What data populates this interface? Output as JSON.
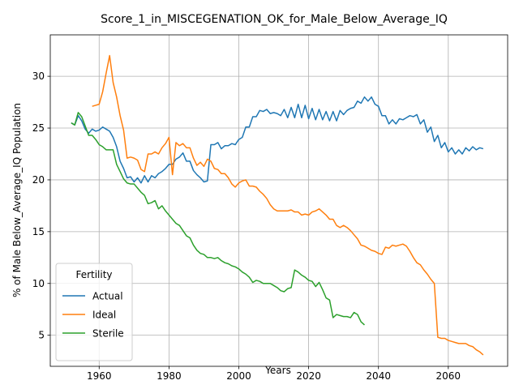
{
  "chart_data": {
    "type": "line",
    "title": "Score_1_in_MISCEGENATION_OK_for_Male_Below_Average_IQ",
    "xlabel": "Years",
    "ylabel": "% of Male Below_Average_IQ Population",
    "xlim": [
      1946,
      2077
    ],
    "ylim": [
      2,
      34
    ],
    "xticks": [
      1960,
      1980,
      2000,
      2020,
      2040,
      2060
    ],
    "yticks": [
      5,
      10,
      15,
      20,
      25,
      30
    ],
    "grid": true,
    "legend": {
      "title": "Fertility",
      "placement": "lower-left"
    },
    "series": [
      {
        "name": "Actual",
        "color": "#1f77b4",
        "points": [
          [
            1952,
            25.5
          ],
          [
            1953,
            25.3
          ],
          [
            1954,
            26.2
          ],
          [
            1955,
            25.7
          ],
          [
            1956,
            24.9
          ],
          [
            1957,
            24.5
          ],
          [
            1958,
            24.9
          ],
          [
            1959,
            24.7
          ],
          [
            1960,
            24.8
          ],
          [
            1961,
            25.1
          ],
          [
            1962,
            24.9
          ],
          [
            1963,
            24.7
          ],
          [
            1964,
            24.1
          ],
          [
            1965,
            23.2
          ],
          [
            1966,
            21.8
          ],
          [
            1967,
            21.1
          ],
          [
            1968,
            20.2
          ],
          [
            1969,
            20.3
          ],
          [
            1970,
            19.8
          ],
          [
            1971,
            20.2
          ],
          [
            1972,
            19.7
          ],
          [
            1973,
            20.4
          ],
          [
            1974,
            19.8
          ],
          [
            1975,
            20.4
          ],
          [
            1976,
            20.2
          ],
          [
            1977,
            20.6
          ],
          [
            1978,
            20.8
          ],
          [
            1979,
            21.1
          ],
          [
            1980,
            21.5
          ],
          [
            1981,
            21.5
          ],
          [
            1982,
            22.0
          ],
          [
            1983,
            22.2
          ],
          [
            1984,
            22.6
          ],
          [
            1985,
            21.8
          ],
          [
            1986,
            21.8
          ],
          [
            1987,
            20.9
          ],
          [
            1988,
            20.5
          ],
          [
            1989,
            20.2
          ],
          [
            1990,
            19.8
          ],
          [
            1991,
            19.9
          ],
          [
            1992,
            23.4
          ],
          [
            1993,
            23.4
          ],
          [
            1994,
            23.6
          ],
          [
            1995,
            23.0
          ],
          [
            1996,
            23.3
          ],
          [
            1997,
            23.3
          ],
          [
            1998,
            23.5
          ],
          [
            1999,
            23.4
          ],
          [
            2000,
            23.9
          ],
          [
            2001,
            24.1
          ],
          [
            2002,
            25.1
          ],
          [
            2003,
            25.1
          ],
          [
            2004,
            26.1
          ],
          [
            2005,
            26.1
          ],
          [
            2006,
            26.7
          ],
          [
            2007,
            26.6
          ],
          [
            2008,
            26.8
          ],
          [
            2009,
            26.4
          ],
          [
            2010,
            26.5
          ],
          [
            2011,
            26.4
          ],
          [
            2012,
            26.2
          ],
          [
            2013,
            26.8
          ],
          [
            2014,
            26.0
          ],
          [
            2015,
            27.0
          ],
          [
            2016,
            26.0
          ],
          [
            2017,
            27.3
          ],
          [
            2018,
            26.0
          ],
          [
            2019,
            27.2
          ],
          [
            2020,
            25.9
          ],
          [
            2021,
            26.9
          ],
          [
            2022,
            25.8
          ],
          [
            2023,
            26.8
          ],
          [
            2024,
            25.8
          ],
          [
            2025,
            26.6
          ],
          [
            2026,
            25.7
          ],
          [
            2027,
            26.6
          ],
          [
            2028,
            25.7
          ],
          [
            2029,
            26.7
          ],
          [
            2030,
            26.3
          ],
          [
            2031,
            26.7
          ],
          [
            2032,
            26.9
          ],
          [
            2033,
            27.0
          ],
          [
            2034,
            27.6
          ],
          [
            2035,
            27.4
          ],
          [
            2036,
            28.0
          ],
          [
            2037,
            27.6
          ],
          [
            2038,
            28.0
          ],
          [
            2039,
            27.3
          ],
          [
            2040,
            27.1
          ],
          [
            2041,
            26.2
          ],
          [
            2042,
            26.2
          ],
          [
            2043,
            25.4
          ],
          [
            2044,
            25.8
          ],
          [
            2045,
            25.4
          ],
          [
            2046,
            25.9
          ],
          [
            2047,
            25.8
          ],
          [
            2048,
            26.0
          ],
          [
            2049,
            26.2
          ],
          [
            2050,
            26.1
          ],
          [
            2051,
            26.3
          ],
          [
            2052,
            25.4
          ],
          [
            2053,
            25.8
          ],
          [
            2054,
            24.6
          ],
          [
            2055,
            25.1
          ],
          [
            2056,
            23.7
          ],
          [
            2057,
            24.3
          ],
          [
            2058,
            23.1
          ],
          [
            2059,
            23.6
          ],
          [
            2060,
            22.7
          ],
          [
            2061,
            23.1
          ],
          [
            2062,
            22.5
          ],
          [
            2063,
            22.9
          ],
          [
            2064,
            22.5
          ],
          [
            2065,
            23.1
          ],
          [
            2066,
            22.8
          ],
          [
            2067,
            23.2
          ],
          [
            2068,
            22.9
          ],
          [
            2069,
            23.1
          ],
          [
            2070,
            23.0
          ]
        ]
      },
      {
        "name": "Ideal",
        "color": "#ff7f0e",
        "points": [
          [
            1958,
            27.1
          ],
          [
            1959,
            27.2
          ],
          [
            1960,
            27.3
          ],
          [
            1961,
            28.5
          ],
          [
            1962,
            30.3
          ],
          [
            1963,
            32.0
          ],
          [
            1964,
            29.4
          ],
          [
            1965,
            28.0
          ],
          [
            1966,
            26.2
          ],
          [
            1967,
            24.8
          ],
          [
            1968,
            22.1
          ],
          [
            1969,
            22.2
          ],
          [
            1970,
            22.1
          ],
          [
            1971,
            21.9
          ],
          [
            1972,
            21.0
          ],
          [
            1973,
            20.8
          ],
          [
            1974,
            22.5
          ],
          [
            1975,
            22.5
          ],
          [
            1976,
            22.7
          ],
          [
            1977,
            22.5
          ],
          [
            1978,
            23.1
          ],
          [
            1979,
            23.5
          ],
          [
            1980,
            24.1
          ],
          [
            1981,
            20.5
          ],
          [
            1982,
            23.6
          ],
          [
            1983,
            23.3
          ],
          [
            1984,
            23.5
          ],
          [
            1985,
            23.1
          ],
          [
            1986,
            23.1
          ],
          [
            1987,
            22.1
          ],
          [
            1988,
            21.4
          ],
          [
            1989,
            21.7
          ],
          [
            1990,
            21.3
          ],
          [
            1991,
            22.0
          ],
          [
            1992,
            21.8
          ],
          [
            1993,
            21.1
          ],
          [
            1994,
            21.0
          ],
          [
            1995,
            20.6
          ],
          [
            1996,
            20.6
          ],
          [
            1997,
            20.2
          ],
          [
            1998,
            19.6
          ],
          [
            1999,
            19.3
          ],
          [
            2000,
            19.7
          ],
          [
            2001,
            19.9
          ],
          [
            2002,
            20.0
          ],
          [
            2003,
            19.4
          ],
          [
            2004,
            19.4
          ],
          [
            2005,
            19.3
          ],
          [
            2006,
            18.9
          ],
          [
            2007,
            18.6
          ],
          [
            2008,
            18.2
          ],
          [
            2009,
            17.6
          ],
          [
            2010,
            17.2
          ],
          [
            2011,
            17.0
          ],
          [
            2012,
            17.0
          ],
          [
            2013,
            17.0
          ],
          [
            2014,
            17.0
          ],
          [
            2015,
            17.1
          ],
          [
            2016,
            16.9
          ],
          [
            2017,
            16.9
          ],
          [
            2018,
            16.6
          ],
          [
            2019,
            16.7
          ],
          [
            2020,
            16.6
          ],
          [
            2021,
            16.9
          ],
          [
            2022,
            17.0
          ],
          [
            2023,
            17.2
          ],
          [
            2024,
            16.9
          ],
          [
            2025,
            16.6
          ],
          [
            2026,
            16.2
          ],
          [
            2027,
            16.2
          ],
          [
            2028,
            15.6
          ],
          [
            2029,
            15.4
          ],
          [
            2030,
            15.6
          ],
          [
            2031,
            15.4
          ],
          [
            2032,
            15.1
          ],
          [
            2033,
            14.7
          ],
          [
            2034,
            14.3
          ],
          [
            2035,
            13.7
          ],
          [
            2036,
            13.6
          ],
          [
            2037,
            13.4
          ],
          [
            2038,
            13.2
          ],
          [
            2039,
            13.1
          ],
          [
            2040,
            12.9
          ],
          [
            2041,
            12.8
          ],
          [
            2042,
            13.5
          ],
          [
            2043,
            13.4
          ],
          [
            2044,
            13.7
          ],
          [
            2045,
            13.6
          ],
          [
            2046,
            13.7
          ],
          [
            2047,
            13.8
          ],
          [
            2048,
            13.6
          ],
          [
            2049,
            13.1
          ],
          [
            2050,
            12.5
          ],
          [
            2051,
            12.0
          ],
          [
            2052,
            11.8
          ],
          [
            2053,
            11.3
          ],
          [
            2054,
            10.9
          ],
          [
            2055,
            10.4
          ],
          [
            2056,
            10.0
          ],
          [
            2057,
            4.8
          ],
          [
            2058,
            4.7
          ],
          [
            2059,
            4.7
          ],
          [
            2060,
            4.5
          ],
          [
            2061,
            4.4
          ],
          [
            2062,
            4.3
          ],
          [
            2063,
            4.2
          ],
          [
            2064,
            4.2
          ],
          [
            2065,
            4.2
          ],
          [
            2066,
            4.0
          ],
          [
            2067,
            3.9
          ],
          [
            2068,
            3.6
          ],
          [
            2069,
            3.4
          ],
          [
            2070,
            3.1
          ]
        ]
      },
      {
        "name": "Sterile",
        "color": "#2ca02c",
        "points": [
          [
            1952,
            25.5
          ],
          [
            1953,
            25.3
          ],
          [
            1954,
            26.5
          ],
          [
            1955,
            26.1
          ],
          [
            1956,
            25.2
          ],
          [
            1957,
            24.3
          ],
          [
            1958,
            24.3
          ],
          [
            1959,
            23.9
          ],
          [
            1960,
            23.4
          ],
          [
            1961,
            23.2
          ],
          [
            1962,
            22.9
          ],
          [
            1963,
            22.9
          ],
          [
            1964,
            22.9
          ],
          [
            1965,
            21.5
          ],
          [
            1966,
            20.8
          ],
          [
            1967,
            20.1
          ],
          [
            1968,
            19.7
          ],
          [
            1969,
            19.6
          ],
          [
            1970,
            19.6
          ],
          [
            1971,
            19.2
          ],
          [
            1972,
            18.8
          ],
          [
            1973,
            18.5
          ],
          [
            1974,
            17.7
          ],
          [
            1975,
            17.8
          ],
          [
            1976,
            18.0
          ],
          [
            1977,
            17.2
          ],
          [
            1978,
            17.5
          ],
          [
            1979,
            17.0
          ],
          [
            1980,
            16.6
          ],
          [
            1981,
            16.2
          ],
          [
            1982,
            15.8
          ],
          [
            1983,
            15.6
          ],
          [
            1984,
            15.1
          ],
          [
            1985,
            14.6
          ],
          [
            1986,
            14.4
          ],
          [
            1987,
            13.7
          ],
          [
            1988,
            13.2
          ],
          [
            1989,
            12.9
          ],
          [
            1990,
            12.8
          ],
          [
            1991,
            12.5
          ],
          [
            1992,
            12.5
          ],
          [
            1993,
            12.4
          ],
          [
            1994,
            12.5
          ],
          [
            1995,
            12.2
          ],
          [
            1996,
            12.0
          ],
          [
            1997,
            11.9
          ],
          [
            1998,
            11.7
          ],
          [
            1999,
            11.6
          ],
          [
            2000,
            11.4
          ],
          [
            2001,
            11.1
          ],
          [
            2002,
            10.9
          ],
          [
            2003,
            10.6
          ],
          [
            2004,
            10.1
          ],
          [
            2005,
            10.3
          ],
          [
            2006,
            10.2
          ],
          [
            2007,
            10.0
          ],
          [
            2008,
            10.0
          ],
          [
            2009,
            10.0
          ],
          [
            2010,
            9.8
          ],
          [
            2011,
            9.6
          ],
          [
            2012,
            9.3
          ],
          [
            2013,
            9.2
          ],
          [
            2014,
            9.5
          ],
          [
            2015,
            9.6
          ],
          [
            2016,
            11.3
          ],
          [
            2017,
            11.1
          ],
          [
            2018,
            10.8
          ],
          [
            2019,
            10.6
          ],
          [
            2020,
            10.3
          ],
          [
            2021,
            10.2
          ],
          [
            2022,
            9.7
          ],
          [
            2023,
            10.1
          ],
          [
            2024,
            9.4
          ],
          [
            2025,
            8.6
          ],
          [
            2026,
            8.4
          ],
          [
            2027,
            6.7
          ],
          [
            2028,
            7.0
          ],
          [
            2029,
            6.9
          ],
          [
            2030,
            6.8
          ],
          [
            2031,
            6.8
          ],
          [
            2032,
            6.7
          ],
          [
            2033,
            7.2
          ],
          [
            2034,
            7.0
          ],
          [
            2035,
            6.3
          ],
          [
            2036,
            6.0
          ]
        ]
      }
    ]
  }
}
